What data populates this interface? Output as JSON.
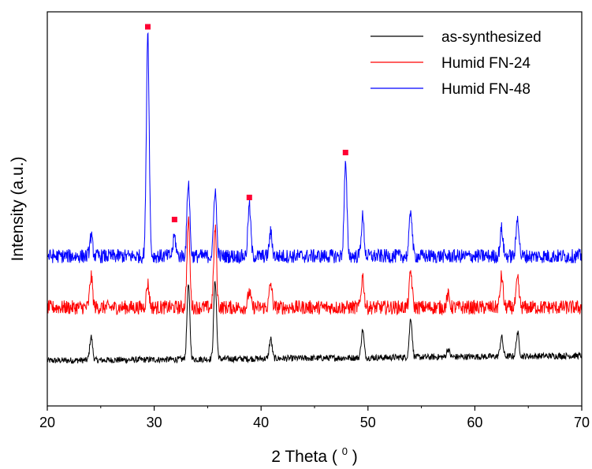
{
  "chart_data": {
    "type": "line",
    "xlabel": "2 Theta ( ",
    "xlabel_sup": "0",
    "xlabel_end": " )",
    "ylabel": "Intensity (a.u.)",
    "xlim": [
      20,
      70
    ],
    "ylim": [
      0,
      100
    ],
    "x_ticks": [
      "20",
      "30",
      "40",
      "50",
      "60",
      "70"
    ],
    "y_ticks_labeled": false,
    "grid": false,
    "legend_position": "top-right",
    "baseline_noise": 0.9,
    "series": [
      {
        "name": "as-synthesized",
        "color": "#000000",
        "baseline": 11.5,
        "slope": 0.025,
        "peaks": [
          {
            "x": 24.1,
            "h": 6
          },
          {
            "x": 33.2,
            "h": 19
          },
          {
            "x": 35.7,
            "h": 20
          },
          {
            "x": 40.9,
            "h": 5
          },
          {
            "x": 49.5,
            "h": 7
          },
          {
            "x": 54.0,
            "h": 10
          },
          {
            "x": 57.5,
            "h": 2
          },
          {
            "x": 62.5,
            "h": 5
          },
          {
            "x": 64.0,
            "h": 6
          }
        ]
      },
      {
        "name": "Humid FN-24",
        "color": "#ff0000",
        "baseline": 25,
        "slope": 0,
        "peaks": [
          {
            "x": 24.1,
            "h": 8
          },
          {
            "x": 29.4,
            "h": 6
          },
          {
            "x": 33.2,
            "h": 22
          },
          {
            "x": 35.7,
            "h": 20
          },
          {
            "x": 38.9,
            "h": 4
          },
          {
            "x": 40.9,
            "h": 6
          },
          {
            "x": 49.5,
            "h": 8
          },
          {
            "x": 54.0,
            "h": 9
          },
          {
            "x": 57.5,
            "h": 3
          },
          {
            "x": 62.5,
            "h": 8
          },
          {
            "x": 64.0,
            "h": 7
          }
        ]
      },
      {
        "name": "Humid FN-48",
        "color": "#0000ff",
        "baseline": 38,
        "slope": 0,
        "peaks": [
          {
            "x": 24.1,
            "h": 5
          },
          {
            "x": 29.4,
            "h": 57
          },
          {
            "x": 31.9,
            "h": 5
          },
          {
            "x": 33.2,
            "h": 19
          },
          {
            "x": 35.7,
            "h": 17
          },
          {
            "x": 38.9,
            "h": 13
          },
          {
            "x": 40.9,
            "h": 6
          },
          {
            "x": 47.9,
            "h": 23
          },
          {
            "x": 49.5,
            "h": 10
          },
          {
            "x": 54.0,
            "h": 12
          },
          {
            "x": 62.5,
            "h": 7
          },
          {
            "x": 64.0,
            "h": 10
          }
        ]
      }
    ],
    "markers": {
      "color": "#ff0033",
      "points": [
        {
          "x": 29.4,
          "y": 96.2
        },
        {
          "x": 31.9,
          "y": 47.3
        },
        {
          "x": 38.9,
          "y": 52.9
        },
        {
          "x": 47.9,
          "y": 64.3
        }
      ]
    }
  }
}
